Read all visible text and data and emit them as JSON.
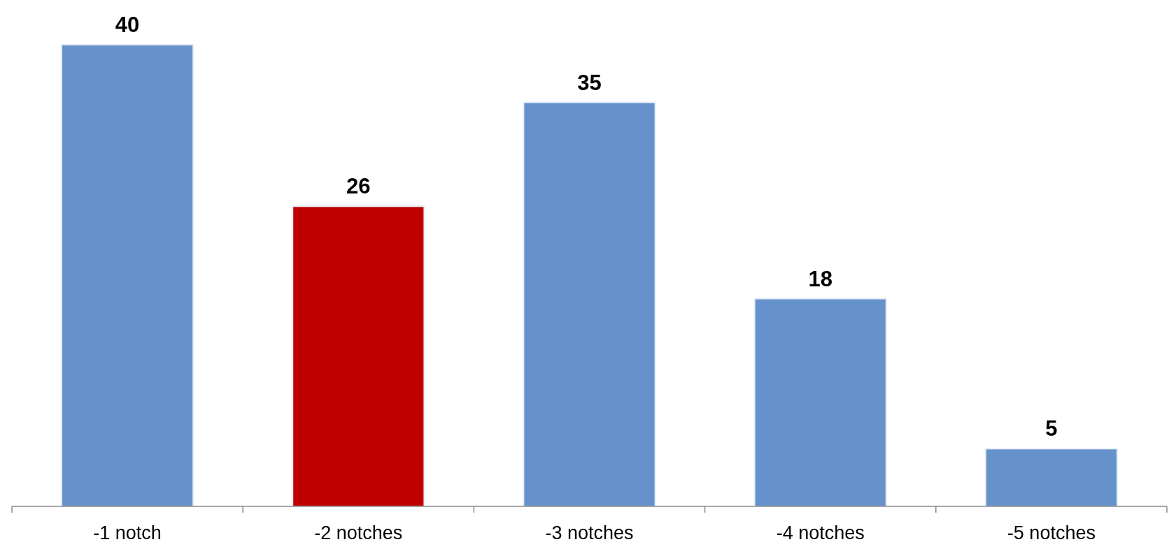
{
  "chart_data": {
    "type": "bar",
    "categories": [
      "-1 notch",
      "-2 notches",
      "-3 notches",
      "-4 notches",
      "-5 notches"
    ],
    "values": [
      40,
      26,
      35,
      18,
      5
    ],
    "colors": [
      "#6692cc",
      "#c00000",
      "#6692cc",
      "#6692cc",
      "#6692cc"
    ],
    "data_labels": true
  }
}
